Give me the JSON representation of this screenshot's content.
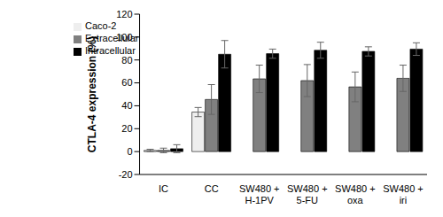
{
  "chart_data": {
    "type": "bar",
    "y_label": "CTLA-4 expression (%)",
    "categories": [
      "IC",
      "CC",
      "SW480 + H-1PV",
      "SW480 + 5-FU",
      "SW480 + oxa",
      "SW480 + iri"
    ],
    "series": [
      {
        "name": "Caco-2",
        "color": "#eeeeee",
        "values": [
          1,
          34.5,
          null,
          null,
          null,
          null
        ],
        "errors": [
          1,
          4,
          null,
          null,
          null,
          null
        ]
      },
      {
        "name": "Extracellular",
        "color": "#808080",
        "values": [
          1,
          45.5,
          63.5,
          62,
          56.5,
          64
        ],
        "errors": [
          2,
          13,
          12,
          14,
          13,
          11.5
        ]
      },
      {
        "name": "Intracellular",
        "color": "#000000",
        "values": [
          2.5,
          85,
          85.5,
          88.5,
          87.5,
          89.5
        ],
        "errors": [
          3.5,
          12,
          4,
          7,
          4,
          5.5
        ]
      }
    ],
    "ylim": [
      -20,
      120
    ],
    "yticks": [
      -20,
      0,
      20,
      40,
      60,
      80,
      100,
      120
    ],
    "grid": false,
    "legend": "upper left"
  }
}
